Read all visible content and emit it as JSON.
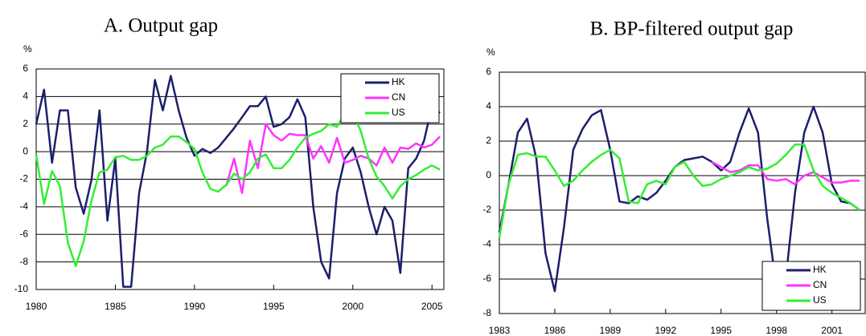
{
  "chart_data": [
    {
      "type": "line",
      "title": "A. Output gap",
      "y_label": "%",
      "x": [
        1980,
        1980.5,
        1981,
        1981.5,
        1982,
        1982.5,
        1983,
        1983.5,
        1984,
        1984.5,
        1985,
        1985.5,
        1986,
        1986.5,
        1987,
        1987.5,
        1988,
        1988.5,
        1989,
        1989.5,
        1990,
        1990.5,
        1991,
        1991.5,
        1992,
        1992.5,
        1993,
        1993.5,
        1994,
        1994.5,
        1995,
        1995.5,
        1996,
        1996.5,
        1997,
        1997.5,
        1998,
        1998.5,
        1999,
        1999.5,
        2000,
        2000.5,
        2001,
        2001.5,
        2002,
        2002.5,
        2003,
        2003.5,
        2004,
        2004.5,
        2005,
        2005.5
      ],
      "series": [
        {
          "name": "HK",
          "color": "#1c1f6b",
          "values": [
            2,
            4.5,
            -0.8,
            3,
            3,
            -2.6,
            -4.5,
            -2,
            3,
            -5,
            -0.5,
            -9.8,
            -9.8,
            -3,
            0,
            5.2,
            3,
            5.5,
            3,
            1,
            -0.3,
            0.2,
            -0.1,
            0.3,
            1,
            1.7,
            2.5,
            3.3,
            3.3,
            4,
            1.8,
            2,
            2.5,
            3.8,
            2.5,
            -4,
            -8,
            -9.2,
            -3,
            -0.5,
            0.3,
            -1.5,
            -4,
            -6,
            -4,
            -5,
            -8.8,
            -1.2,
            -0.5,
            0.8,
            3.3,
            2.8
          ]
        },
        {
          "name": "CN",
          "color": "#ff33ff",
          "values": [
            null,
            null,
            null,
            null,
            null,
            null,
            null,
            null,
            null,
            null,
            null,
            null,
            null,
            null,
            null,
            null,
            null,
            null,
            null,
            null,
            null,
            null,
            null,
            null,
            -2.5,
            -0.5,
            -3,
            0.8,
            -1.2,
            2,
            1.2,
            0.8,
            1.3,
            1.2,
            1.2,
            -0.5,
            0.4,
            -0.8,
            1,
            -0.8,
            -0.6,
            -0.3,
            -0.5,
            -1,
            0.3,
            -0.8,
            0.3,
            0.2,
            0.6,
            0.3,
            0.5,
            1.1
          ]
        },
        {
          "name": "US",
          "color": "#33ee33",
          "values": [
            -0.2,
            -3.8,
            -1.4,
            -2.5,
            -6.6,
            -8.3,
            -6.5,
            -3.5,
            -1.5,
            -1.3,
            -0.4,
            -0.3,
            -0.6,
            -0.6,
            -0.3,
            0.3,
            0.5,
            1.1,
            1.1,
            0.7,
            0.2,
            -1.5,
            -2.7,
            -2.9,
            -2.4,
            -1.6,
            -2,
            -1.5,
            -0.5,
            -0.2,
            -1.2,
            -1.2,
            -0.6,
            0.3,
            1,
            1.3,
            1.5,
            2,
            1.8,
            2.8,
            2.8,
            1.5,
            -0.5,
            -1.8,
            -2.5,
            -3.4,
            -2.5,
            -2,
            -1.7,
            -1.3,
            -1,
            -1.3
          ]
        }
      ],
      "xlim": [
        1980,
        2005.75
      ],
      "xticks": [
        1980,
        1985,
        1990,
        1995,
        2000,
        2005
      ],
      "ylim": [
        -10,
        6
      ],
      "yticks": [
        -10,
        -8,
        -6,
        -4,
        -2,
        0,
        2,
        4,
        6
      ],
      "grid": true,
      "legend": "top-right"
    },
    {
      "type": "line",
      "title": "B. BP-filtered output gap",
      "y_label": "%",
      "x": [
        1983,
        1983.5,
        1984,
        1984.5,
        1985,
        1985.5,
        1986,
        1986.5,
        1987,
        1987.5,
        1988,
        1988.5,
        1989,
        1989.5,
        1990,
        1990.5,
        1991,
        1991.5,
        1992,
        1992.5,
        1993,
        1993.5,
        1994,
        1994.5,
        1995,
        1995.5,
        1996,
        1996.5,
        1997,
        1997.5,
        1998,
        1998.5,
        1999,
        1999.5,
        2000,
        2000.5,
        2001,
        2001.5,
        2002,
        2002.5
      ],
      "series": [
        {
          "name": "HK",
          "color": "#1c1f6b",
          "values": [
            -3.3,
            -0.5,
            2.5,
            3.3,
            1,
            -4.5,
            -6.7,
            -3,
            1.5,
            2.7,
            3.5,
            3.8,
            1.5,
            -1.5,
            -1.6,
            -1.2,
            -1.4,
            -1,
            -0.3,
            0.5,
            0.9,
            1,
            1.1,
            0.8,
            0.3,
            0.8,
            2.5,
            3.9,
            2.5,
            -2.5,
            -6.5,
            -6,
            -1,
            2.5,
            4,
            2.5,
            -0.5,
            -1.5,
            -1.6,
            -2
          ]
        },
        {
          "name": "CN",
          "color": "#ff33ff",
          "values": [
            null,
            null,
            null,
            null,
            null,
            null,
            null,
            null,
            null,
            null,
            null,
            null,
            null,
            null,
            null,
            null,
            null,
            null,
            null,
            null,
            null,
            null,
            null,
            0.8,
            0.5,
            0.2,
            0.3,
            0.6,
            0.6,
            -0.2,
            -0.3,
            -0.2,
            -0.5,
            0,
            0.2,
            -0.1,
            -0.4,
            -0.4,
            -0.3,
            -0.3
          ]
        },
        {
          "name": "US",
          "color": "#33ee33",
          "values": [
            -3.6,
            -0.5,
            1.2,
            1.3,
            1.1,
            1.1,
            0.3,
            -0.6,
            -0.3,
            0.3,
            0.8,
            1.2,
            1.5,
            1,
            -1.5,
            -1.6,
            -0.5,
            -0.3,
            -0.5,
            0.5,
            0.8,
            0,
            -0.6,
            -0.5,
            -0.2,
            0,
            0.2,
            0.5,
            0.3,
            0.4,
            0.7,
            1.2,
            1.8,
            1.8,
            0.3,
            -0.6,
            -1,
            -1.3,
            -1.6,
            -2
          ]
        }
      ],
      "xlim": [
        1983,
        2002.8
      ],
      "xticks": [
        1983,
        1986,
        1989,
        1992,
        1995,
        1998,
        2001
      ],
      "ylim": [
        -8,
        6
      ],
      "yticks": [
        -8,
        -6,
        -4,
        -2,
        0,
        2,
        4,
        6
      ],
      "grid": true,
      "legend": "bottom-right"
    }
  ]
}
